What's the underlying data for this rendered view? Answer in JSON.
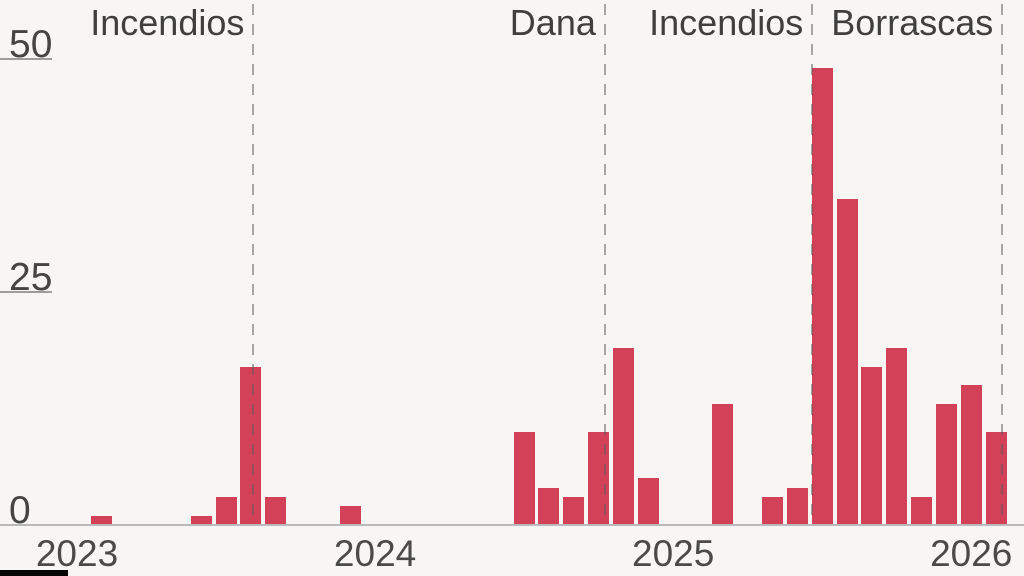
{
  "chart_data": {
    "type": "bar",
    "title": "",
    "xlabel": "",
    "ylabel": "",
    "yticks": [
      0,
      25,
      50
    ],
    "ylim": [
      0,
      52
    ],
    "x_axis_start": "2023-01",
    "x_axis_end": "2026-02",
    "year_labels": [
      "2023",
      "2024",
      "2025",
      "2026"
    ],
    "grid": "left-tick-underlines-only",
    "legend_position": "none",
    "bar_color": "#d34158",
    "background_color": "#f7f6f4",
    "axis_line_color": "#b9b9b9",
    "text_color": "#3f3f3f",
    "event_line_color": "#a9a9a9",
    "bars": [
      {
        "month": "2023-02",
        "value": 1
      },
      {
        "month": "2023-06",
        "value": 1
      },
      {
        "month": "2023-07",
        "value": 3
      },
      {
        "month": "2023-08",
        "value": 17
      },
      {
        "month": "2023-09",
        "value": 3
      },
      {
        "month": "2023-12",
        "value": 2
      },
      {
        "month": "2024-07",
        "value": 10
      },
      {
        "month": "2024-08",
        "value": 4
      },
      {
        "month": "2024-09",
        "value": 3
      },
      {
        "month": "2024-10",
        "value": 10
      },
      {
        "month": "2024-11",
        "value": 19
      },
      {
        "month": "2024-12",
        "value": 5
      },
      {
        "month": "2025-03",
        "value": 13
      },
      {
        "month": "2025-05",
        "value": 3
      },
      {
        "month": "2025-06",
        "value": 4
      },
      {
        "month": "2025-07",
        "value": 49
      },
      {
        "month": "2025-08",
        "value": 35
      },
      {
        "month": "2025-09",
        "value": 17
      },
      {
        "month": "2025-10",
        "value": 19
      },
      {
        "month": "2025-11",
        "value": 3
      },
      {
        "month": "2025-12",
        "value": 13
      },
      {
        "month": "2026-01",
        "value": 15
      },
      {
        "month": "2026-02",
        "value": 10
      }
    ],
    "event_lines": [
      {
        "label": "Incendios",
        "months_from_2023_01": 7.1
      },
      {
        "label": "Dana",
        "months_from_2023_01": 21.25
      },
      {
        "label": "Incendios",
        "months_from_2023_01": 29.6
      },
      {
        "label": "Borrascas",
        "months_from_2023_01": 37.25
      }
    ]
  }
}
